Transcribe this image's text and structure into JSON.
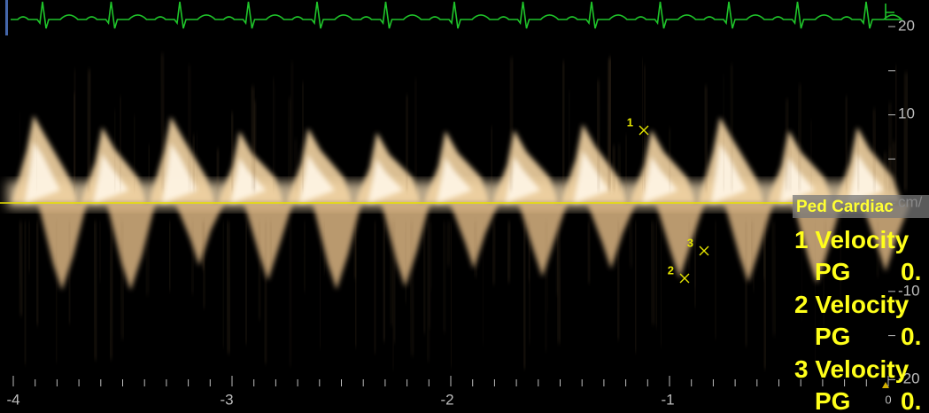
{
  "axis": {
    "y_ticks": [
      "20",
      "10",
      "cm/",
      "-10",
      "-20"
    ],
    "x_ticks": [
      "-4",
      "-3",
      "-2",
      "-1",
      "0"
    ]
  },
  "markers": [
    "1",
    "2",
    "3"
  ],
  "panel": {
    "title": "Ped Cardiac",
    "rows": [
      {
        "label": "1 Velocity",
        "sub": "PG",
        "value": "0."
      },
      {
        "label": "2 Velocity",
        "sub": "PG",
        "value": "0."
      },
      {
        "label": "3 Velocity",
        "sub": "PG",
        "value": "0."
      }
    ]
  }
}
